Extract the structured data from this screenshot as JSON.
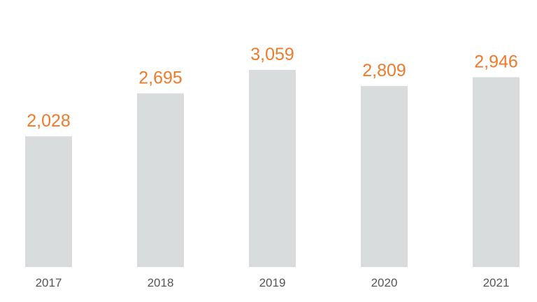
{
  "colors": {
    "bar": "#d9dcdd",
    "value_label": "#ee7a2c",
    "tick_label": "#555555"
  },
  "chart_data": {
    "type": "bar",
    "title": "",
    "xlabel": "",
    "ylabel": "",
    "categories": [
      "2017",
      "2018",
      "2019",
      "2020",
      "2021"
    ],
    "values": [
      2028,
      2695,
      3059,
      2809,
      2946
    ],
    "value_labels": [
      "2,028",
      "2,695",
      "3,059",
      "2,809",
      "2,946"
    ],
    "ylim": [
      0,
      3400
    ],
    "grid": false,
    "legend": "none"
  }
}
